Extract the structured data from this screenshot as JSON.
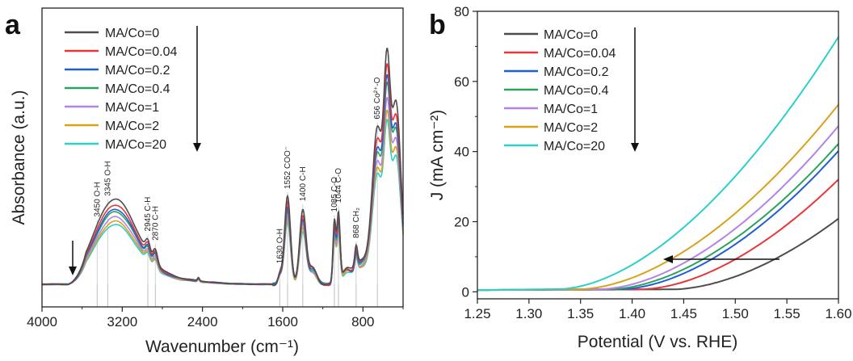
{
  "chart_data": [
    {
      "type": "line",
      "panel": "a",
      "xlabel": "Wavenumber (cm⁻¹)",
      "ylabel": "Absorbance (a.u.)",
      "xlim": [
        4000,
        400
      ],
      "x_reversed": true,
      "xticks": [
        4000,
        3200,
        2400,
        1600,
        800
      ],
      "y_ticks_shown": false,
      "legend_position": "top-left",
      "series": [
        {
          "name": "MA/Co=0",
          "color": "#4d4d4d",
          "scale": 1.0
        },
        {
          "name": "MA/Co=0.04",
          "color": "#e8363a",
          "scale": 0.93
        },
        {
          "name": "MA/Co=0.2",
          "color": "#1f5fd6",
          "scale": 0.88
        },
        {
          "name": "MA/Co=0.4",
          "color": "#2ba35c",
          "scale": 0.85
        },
        {
          "name": "MA/Co=1",
          "color": "#b383e6",
          "scale": 0.79
        },
        {
          "name": "MA/Co=2",
          "color": "#d9a21b",
          "scale": 0.74
        },
        {
          "name": "MA/Co=20",
          "color": "#2cd0c8",
          "scale": 0.7
        }
      ],
      "annotations": [
        {
          "x": 3450,
          "label": "3450  O-H"
        },
        {
          "x": 3345,
          "label": "3345  O-H"
        },
        {
          "x": 2945,
          "label": "2945  C-H"
        },
        {
          "x": 2870,
          "label": "2870  C-H"
        },
        {
          "x": 1630,
          "label": "1630  O-H"
        },
        {
          "x": 1552,
          "label": "1552  COO⁻"
        },
        {
          "x": 1400,
          "label": "1400  C-H"
        },
        {
          "x": 1085,
          "label": "1085  C-O"
        },
        {
          "x": 1044,
          "label": "1044  C-O"
        },
        {
          "x": 868,
          "label": "868  CH₂"
        },
        {
          "x": 656,
          "label": "656 Co²⁺-O"
        }
      ]
    },
    {
      "type": "line",
      "panel": "b",
      "xlabel": "Potential (V vs. RHE)",
      "ylabel": "J (mA cm⁻²)",
      "xlim": [
        1.25,
        1.6
      ],
      "ylim": [
        -2,
        80
      ],
      "xticks": [
        "1.25",
        "1.30",
        "1.35",
        "1.40",
        "1.45",
        "1.50",
        "1.55",
        "1.60"
      ],
      "yticks": [
        "0",
        "20",
        "40",
        "60",
        "80"
      ],
      "legend_position": "top-left",
      "series": [
        {
          "name": "MA/Co=0",
          "color": "#4d4d4d",
          "end_value": 22,
          "onset": 1.44
        },
        {
          "name": "MA/Co=0.04",
          "color": "#e8363a",
          "end_value": 33,
          "onset": 1.41
        },
        {
          "name": "MA/Co=0.2",
          "color": "#1f5fd6",
          "end_value": 41,
          "onset": 1.39
        },
        {
          "name": "MA/Co=0.4",
          "color": "#2ba35c",
          "end_value": 43,
          "onset": 1.38
        },
        {
          "name": "MA/Co=1",
          "color": "#b383e6",
          "end_value": 48,
          "onset": 1.37
        },
        {
          "name": "MA/Co=2",
          "color": "#d9a21b",
          "end_value": 54,
          "onset": 1.35
        },
        {
          "name": "MA/Co=20",
          "color": "#2cd0c8",
          "end_value": 73,
          "onset": 1.33
        }
      ]
    }
  ]
}
